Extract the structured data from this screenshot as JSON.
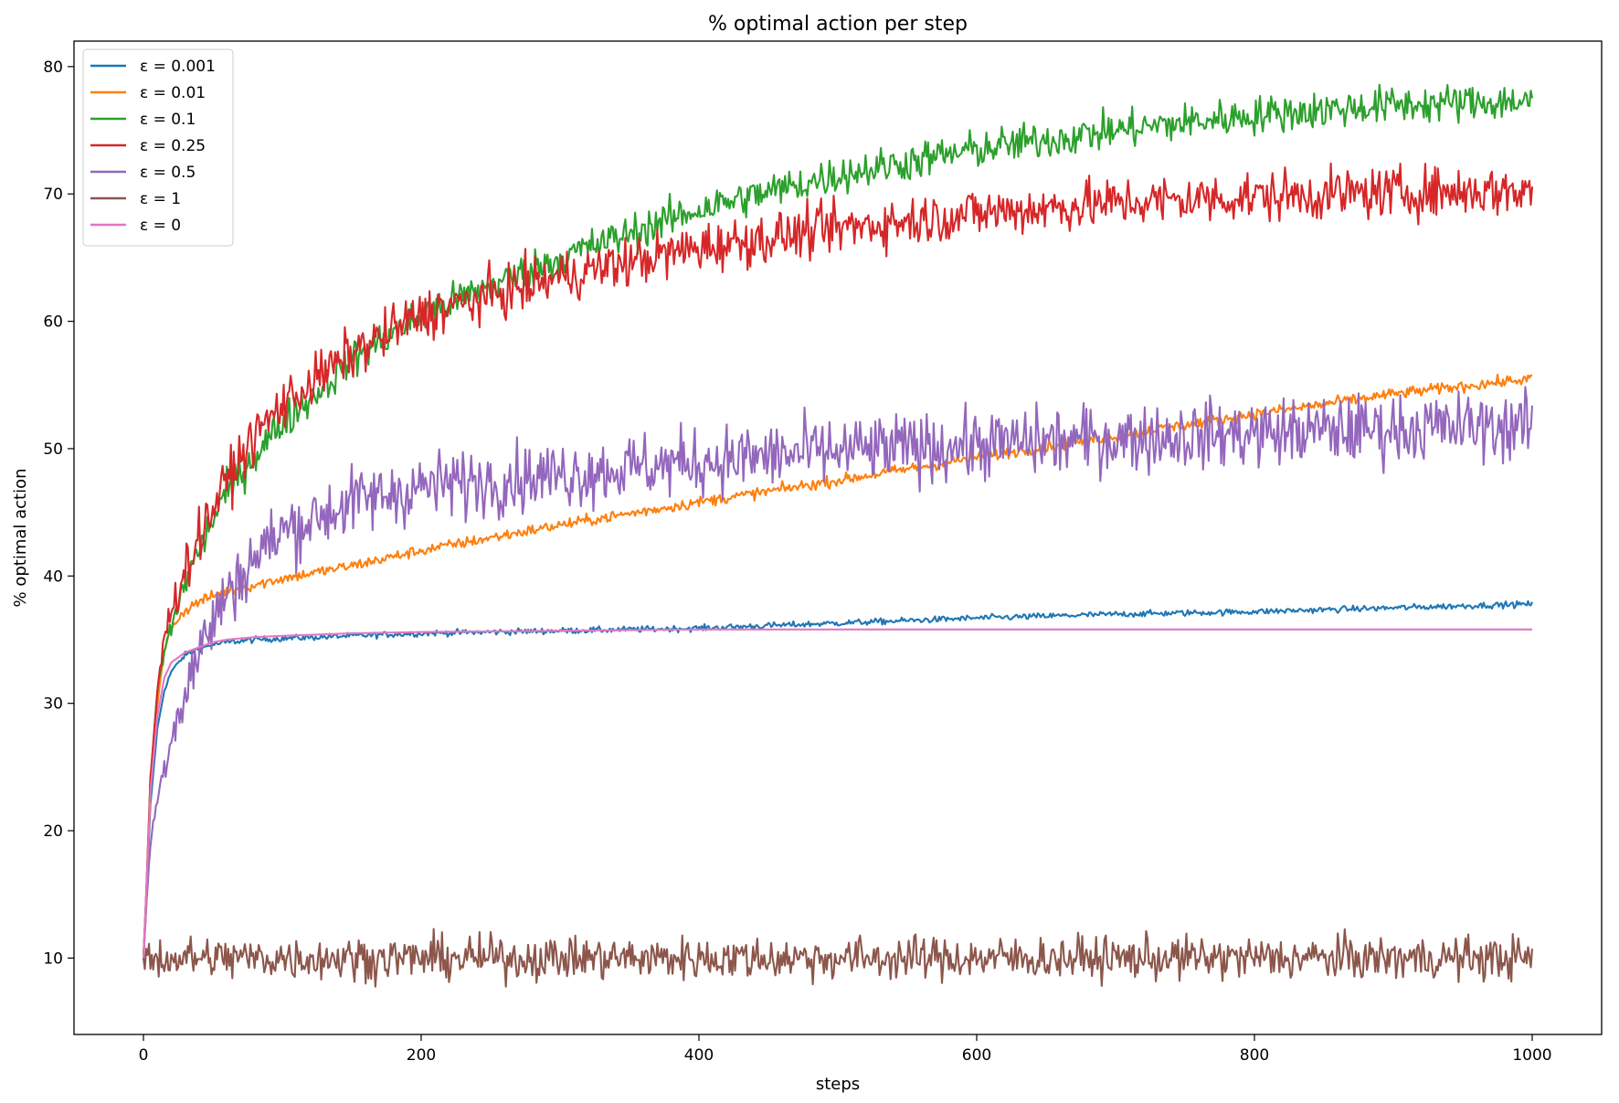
{
  "chart_data": {
    "type": "line",
    "title": "% optimal action per step",
    "xlabel": "steps",
    "ylabel": "% optimal action",
    "xlim": [
      -50,
      1050
    ],
    "ylim": [
      4,
      82
    ],
    "xticks": [
      0,
      200,
      400,
      600,
      800,
      1000
    ],
    "yticks": [
      10,
      20,
      30,
      40,
      50,
      60,
      70,
      80
    ],
    "grid": false,
    "legend_position": "top-left",
    "series": [
      {
        "name": "ε = 0.001",
        "legend_label": "ε = 0.001",
        "color": "#1f77b4",
        "noise": 0.12,
        "x": [
          0,
          2,
          5,
          10,
          15,
          20,
          30,
          40,
          50,
          60,
          80,
          100,
          150,
          200,
          300,
          400,
          500,
          600,
          700,
          800,
          900,
          1000
        ],
        "values": [
          10,
          14,
          22,
          28,
          31,
          32.5,
          33.8,
          34.3,
          34.6,
          34.8,
          35,
          35.1,
          35.3,
          35.5,
          35.7,
          35.9,
          36.3,
          36.7,
          37,
          37.2,
          37.5,
          37.8
        ]
      },
      {
        "name": "ε = 0.01",
        "legend_label": "ε = 0.01",
        "color": "#ff7f0e",
        "noise": 0.22,
        "x": [
          0,
          2,
          5,
          10,
          15,
          20,
          30,
          40,
          60,
          80,
          100,
          150,
          200,
          300,
          400,
          500,
          600,
          700,
          800,
          900,
          1000
        ],
        "values": [
          10,
          14,
          23,
          30,
          34,
          36,
          37.3,
          38,
          38.8,
          39.3,
          39.8,
          40.8,
          42,
          44,
          45.8,
          47.5,
          49.3,
          51,
          52.7,
          54.3,
          55.5
        ]
      },
      {
        "name": "ε = 0.1",
        "legend_label": "ε = 0.1",
        "color": "#2ca02c",
        "noise": 0.75,
        "x": [
          0,
          2,
          5,
          10,
          15,
          20,
          30,
          40,
          50,
          60,
          80,
          100,
          150,
          200,
          250,
          300,
          400,
          500,
          600,
          700,
          800,
          900,
          1000
        ],
        "values": [
          10,
          15,
          24,
          31,
          34,
          36,
          39.5,
          42,
          44.5,
          46.5,
          49.5,
          52,
          57,
          60.5,
          62.8,
          65,
          68.8,
          71.5,
          73.5,
          75,
          76.2,
          77,
          77.3
        ]
      },
      {
        "name": "ε = 0.25",
        "legend_label": "ε = 0.25",
        "color": "#d62728",
        "noise": 1.0,
        "x": [
          0,
          2,
          5,
          10,
          15,
          20,
          30,
          40,
          50,
          60,
          80,
          100,
          150,
          200,
          250,
          300,
          400,
          500,
          600,
          700,
          800,
          900,
          1000
        ],
        "values": [
          10,
          15,
          24,
          31,
          35,
          37.5,
          40.5,
          43,
          45.3,
          47.5,
          51,
          53.5,
          57.5,
          60.5,
          62,
          63.5,
          65.8,
          67.3,
          68.5,
          69.3,
          69.8,
          70.1,
          70.3
        ]
      },
      {
        "name": "ε = 0.5",
        "legend_label": "ε = 0.5",
        "color": "#9467bd",
        "noise": 1.35,
        "x": [
          0,
          2,
          5,
          10,
          15,
          20,
          30,
          40,
          50,
          60,
          80,
          100,
          150,
          200,
          300,
          400,
          500,
          600,
          700,
          800,
          900,
          1000
        ],
        "values": [
          10,
          14,
          19,
          22.5,
          25,
          27.5,
          31,
          34,
          36.5,
          38.5,
          41.5,
          43.5,
          45.8,
          47,
          48,
          49,
          49.8,
          50.3,
          50.8,
          51.2,
          51.6,
          51.8
        ]
      },
      {
        "name": "ε = 1",
        "legend_label": "ε = 1",
        "color": "#8c564b",
        "noise": 0.85,
        "x": [
          0,
          1000
        ],
        "values": [
          10,
          10
        ]
      },
      {
        "name": "ε = 0",
        "legend_label": "ε = 0",
        "color": "#e377c2",
        "noise": 0.0,
        "x": [
          0,
          2,
          5,
          10,
          15,
          20,
          30,
          40,
          50,
          60,
          80,
          100,
          150,
          200,
          300,
          400,
          500,
          600,
          700,
          800,
          900,
          1000
        ],
        "values": [
          10,
          15,
          23,
          29,
          32,
          33.2,
          34,
          34.4,
          34.8,
          35,
          35.2,
          35.3,
          35.5,
          35.6,
          35.7,
          35.8,
          35.8,
          35.8,
          35.8,
          35.8,
          35.8,
          35.8
        ]
      }
    ]
  }
}
